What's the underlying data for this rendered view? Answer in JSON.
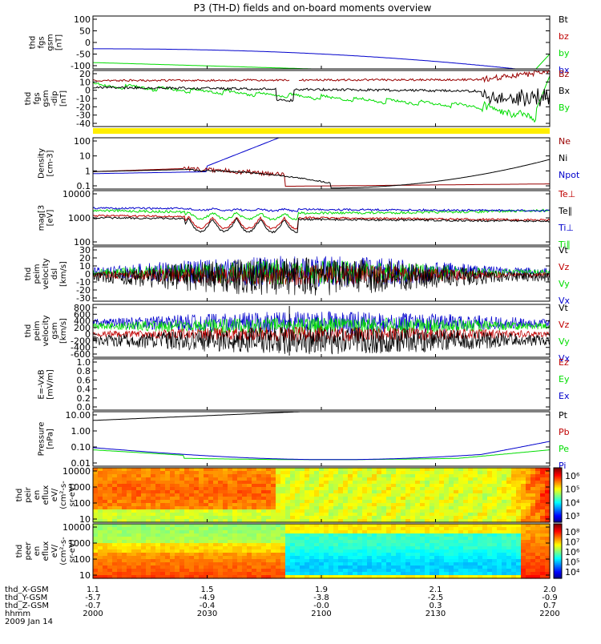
{
  "title": "P3 (TH-D) fields and on-board moments overview",
  "footer": {
    "rows": [
      {
        "label": "thd_X-GSM",
        "values": [
          "1.1",
          "1.5",
          "1.9",
          "2.1",
          "2.0"
        ]
      },
      {
        "label": "thd_Y-GSM",
        "values": [
          "-5.7",
          "-4.9",
          "-3.8",
          "-2.5",
          "-0.9"
        ]
      },
      {
        "label": "thd_Z-GSM",
        "values": [
          "-0.7",
          "-0.4",
          "-0.0",
          "0.3",
          "0.7"
        ]
      },
      {
        "label": "hhmm",
        "values": [
          "2000",
          "2030",
          "2100",
          "2130",
          "2200"
        ]
      }
    ],
    "date": "2009 Jan 14"
  },
  "colors": {
    "black": "#000000",
    "red": "#c00000",
    "green": "#00dd00",
    "blue": "#0000cc",
    "darkred": "#990000",
    "yellow": "#ffee00"
  },
  "chart_data": [
    {
      "type": "line",
      "id": "fgs_gsm",
      "ylabel": [
        "thd",
        "fgs",
        "gsm",
        "[nT]"
      ],
      "yticks": [
        "100",
        "50",
        "0",
        "-50",
        "-100"
      ],
      "ylim": [
        -120,
        110
      ],
      "legend": [
        {
          "name": "Bt",
          "color": "black"
        },
        {
          "name": "bz",
          "color": "red"
        },
        {
          "name": "by",
          "color": "green"
        },
        {
          "name": "bx",
          "color": "blue"
        }
      ]
    },
    {
      "type": "line",
      "id": "fgs_gsm_dip",
      "ylabel": [
        "thd",
        "fgs",
        "gsm",
        "-dip",
        "[nT]"
      ],
      "yticks": [
        "20",
        "10",
        "0",
        "-10",
        "-20",
        "-30",
        "-40"
      ],
      "ylim": [
        -50,
        30
      ],
      "legend": [
        {
          "name": "Bz",
          "color": "darkred"
        },
        {
          "name": "Bx",
          "color": "black"
        },
        {
          "name": "By",
          "color": "green"
        }
      ]
    },
    {
      "type": "line",
      "id": "density",
      "ylabel": [
        "Density",
        "[cm-3]"
      ],
      "yticks": [
        "100",
        "10",
        "1",
        "0.1"
      ],
      "log": true,
      "legend": [
        {
          "name": "Ne",
          "color": "darkred"
        },
        {
          "name": "Ni",
          "color": "black"
        },
        {
          "name": "Npot",
          "color": "blue"
        }
      ]
    },
    {
      "type": "line",
      "id": "temperature",
      "ylabel": [
        "mag[3",
        "[eV]"
      ],
      "yticks": [
        "10000",
        "1000",
        "100"
      ],
      "log": true,
      "legend": [
        {
          "name": "Te⊥",
          "color": "red"
        },
        {
          "name": "Te∥",
          "color": "black"
        },
        {
          "name": "Ti⊥",
          "color": "blue"
        },
        {
          "name": "Ti∥",
          "color": "green"
        }
      ]
    },
    {
      "type": "line",
      "id": "peim_dsl",
      "ylabel": [
        "thd",
        "peim",
        "velocity",
        "dsl",
        "[km/s]"
      ],
      "yticks": [
        "30",
        "20",
        "10",
        "0",
        "-10",
        "-20",
        "-30"
      ],
      "ylim": [
        -35,
        35
      ],
      "legend": [
        {
          "name": "Vt",
          "color": "black"
        },
        {
          "name": "Vz",
          "color": "red"
        },
        {
          "name": "Vy",
          "color": "green"
        },
        {
          "name": "Vx",
          "color": "blue"
        }
      ]
    },
    {
      "type": "line",
      "id": "peim_gsm",
      "ylabel": [
        "thd",
        "peim",
        "velocity",
        "gsm",
        "[km/s]"
      ],
      "yticks": [
        "800",
        "600",
        "400",
        "200",
        "0",
        "-200",
        "-400",
        "-600"
      ],
      "ylim": [
        -650,
        650
      ],
      "legend": [
        {
          "name": "Vt",
          "color": "black"
        },
        {
          "name": "Vz",
          "color": "red"
        },
        {
          "name": "Vy",
          "color": "green"
        },
        {
          "name": "Vx",
          "color": "blue"
        }
      ]
    },
    {
      "type": "line",
      "id": "efield",
      "ylabel": [
        "E=-VxB",
        "[mV/m]"
      ],
      "yticks": [
        "1.0",
        "0.8",
        "0.6",
        "0.4",
        "0.2",
        "0.0"
      ],
      "ylim": [
        0,
        1
      ],
      "legend": [
        {
          "name": "Ez",
          "color": "red"
        },
        {
          "name": "Ey",
          "color": "green"
        },
        {
          "name": "Ex",
          "color": "blue"
        }
      ]
    },
    {
      "type": "line",
      "id": "pressure",
      "ylabel": [
        "Pressure",
        "[nPa]"
      ],
      "yticks": [
        "10.00",
        "1.00",
        "0.10",
        "0.01"
      ],
      "log": true,
      "legend": [
        {
          "name": "Pt",
          "color": "black"
        },
        {
          "name": "Pb",
          "color": "red"
        },
        {
          "name": "Pe",
          "color": "green"
        },
        {
          "name": "Pi",
          "color": "blue"
        }
      ]
    },
    {
      "type": "heatmap",
      "id": "peir",
      "ylabel": [
        "thd",
        "peir",
        "en",
        "eflux",
        "eV/",
        "(cm²-s-",
        "sr-eV)"
      ],
      "yticks": [
        "10000",
        "1000",
        "100",
        "10"
      ],
      "colorbar": [
        "10⁶",
        "10⁵",
        "10⁴",
        "10³"
      ]
    },
    {
      "type": "heatmap",
      "id": "peer",
      "ylabel": [
        "thd",
        "peer",
        "en",
        "eflux",
        "eV/",
        "(cm²-s-",
        "sr-eV)"
      ],
      "yticks": [
        "10000",
        "1000",
        "100",
        "10"
      ],
      "colorbar": [
        "10⁸",
        "10⁷",
        "10⁶",
        "10⁵",
        "10⁴"
      ]
    }
  ]
}
